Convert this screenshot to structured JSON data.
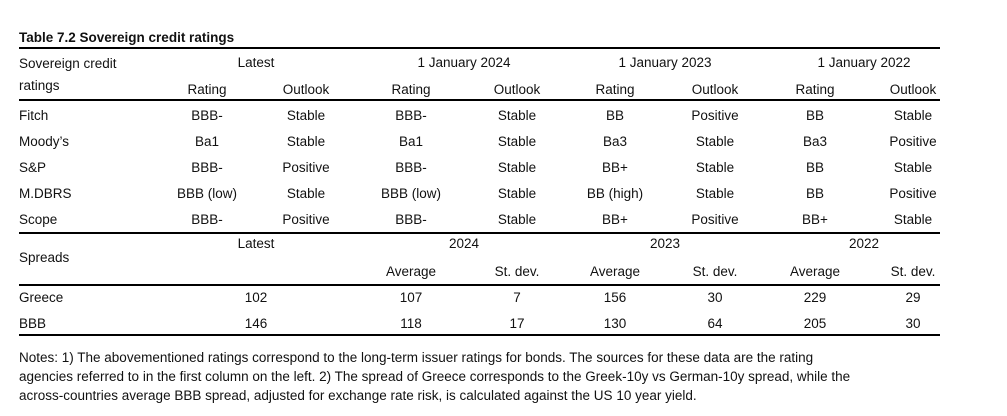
{
  "title": "Table 7.2 Sovereign credit ratings",
  "ratings_header": {
    "row_label_line1": "Sovereign credit",
    "row_label_line2": "ratings",
    "groups": [
      "Latest",
      "1 January 2024",
      "1 January 2023",
      "1 January 2022"
    ],
    "subheaders": [
      "Rating",
      "Outlook",
      "Rating",
      "Outlook",
      "Rating",
      "Outlook",
      "Rating",
      "Outlook"
    ]
  },
  "ratings_rows": [
    {
      "agency": "Fitch",
      "values": [
        "BBB-",
        "Stable",
        "BBB-",
        "Stable",
        "BB",
        "Positive",
        "BB",
        "Stable"
      ]
    },
    {
      "agency": "Moody’s",
      "values": [
        "Ba1",
        "Stable",
        "Ba1",
        "Stable",
        "Ba3",
        "Stable",
        "Ba3",
        "Positive"
      ]
    },
    {
      "agency": "S&P",
      "values": [
        "BBB-",
        "Positive",
        "BBB-",
        "Stable",
        "BB+",
        "Stable",
        "BB",
        "Stable"
      ]
    },
    {
      "agency": "M.DBRS",
      "values": [
        "BBB (low)",
        "Stable",
        "BBB (low)",
        "Stable",
        "BB (high)",
        "Stable",
        "BB",
        "Positive"
      ]
    },
    {
      "agency": "Scope",
      "values": [
        "BBB-",
        "Positive",
        "BBB-",
        "Stable",
        "BB+",
        "Positive",
        "BB+",
        "Stable"
      ]
    }
  ],
  "spreads_header": {
    "row_label": "Spreads",
    "groups": [
      "Latest",
      "2024",
      "2023",
      "2022"
    ],
    "subheaders": [
      "Average",
      "St. dev.",
      "Average",
      "St. dev.",
      "Average",
      "St. dev."
    ]
  },
  "spreads_rows": [
    {
      "label": "Greece",
      "latest": "102",
      "values": [
        "107",
        "7",
        "156",
        "30",
        "229",
        "29"
      ]
    },
    {
      "label": "BBB",
      "latest": "146",
      "values": [
        "118",
        "17",
        "130",
        "64",
        "205",
        "30"
      ]
    }
  ],
  "notes": [
    "Notes: 1) The abovementioned ratings correspond to the long-term issuer ratings for bonds. The sources for these data are the rating",
    "agencies referred to in the first column on the left. 2) The spread of Greece corresponds to the Greek-10y vs German-10y spread, while the",
    "across-countries average BBB spread, adjusted for exchange rate risk, is calculated against the US 10 year yield."
  ]
}
